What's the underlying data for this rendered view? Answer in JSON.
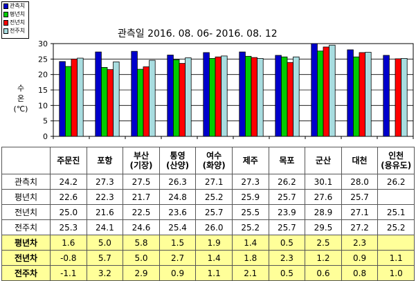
{
  "chart_data": {
    "type": "bar",
    "title": "관측일 2016. 08. 06- 2016. 08. 12",
    "ylabel": "수\n온\n(℃)",
    "ylim": [
      0,
      30
    ],
    "yticks": [
      0,
      5,
      10,
      15,
      20,
      25,
      30
    ],
    "legend_position": "top-left",
    "categories": [
      "주문진",
      "포항",
      "부산",
      "통영",
      "여수",
      "제주",
      "목포",
      "군산",
      "대천",
      "인천"
    ],
    "series": [
      {
        "name": "관측치",
        "color": "#0000cc",
        "values": [
          24.2,
          27.3,
          27.5,
          26.3,
          27.1,
          27.3,
          26.2,
          30.1,
          28.0,
          26.2
        ]
      },
      {
        "name": "평년치",
        "color": "#00cc00",
        "values": [
          22.6,
          22.3,
          21.7,
          24.8,
          25.2,
          25.9,
          25.7,
          27.6,
          25.7,
          null
        ]
      },
      {
        "name": "전년치",
        "color": "#ff0000",
        "values": [
          25.0,
          21.6,
          22.5,
          23.6,
          25.7,
          25.5,
          23.9,
          28.9,
          27.1,
          25.1
        ]
      },
      {
        "name": "전주치",
        "color": "#a8dde0",
        "values": [
          25.3,
          24.1,
          24.6,
          25.4,
          26.0,
          25.2,
          25.7,
          29.5,
          27.2,
          25.2
        ]
      }
    ]
  },
  "table": {
    "headers": [
      "주문진",
      "포항",
      "부산\n(기장)",
      "통영\n(산양)",
      "여수\n(화양)",
      "제주",
      "목포",
      "군산",
      "대천",
      "인천\n(용유도)"
    ],
    "rows": [
      {
        "label": "관측치",
        "values": [
          "24.2",
          "27.3",
          "27.5",
          "26.3",
          "27.1",
          "27.3",
          "26.2",
          "30.1",
          "28.0",
          "26.2"
        ]
      },
      {
        "label": "평년치",
        "values": [
          "22.6",
          "22.3",
          "21.7",
          "24.8",
          "25.2",
          "25.9",
          "25.7",
          "27.6",
          "25.7",
          ""
        ]
      },
      {
        "label": "전년치",
        "values": [
          "25.0",
          "21.6",
          "22.5",
          "23.6",
          "25.7",
          "25.5",
          "23.9",
          "28.9",
          "27.1",
          "25.1"
        ]
      },
      {
        "label": "전주치",
        "values": [
          "25.3",
          "24.1",
          "24.6",
          "25.4",
          "26.0",
          "25.2",
          "25.7",
          "29.5",
          "27.2",
          "25.2"
        ]
      }
    ],
    "diff_rows": [
      {
        "label": "평년차",
        "values": [
          "1.6",
          "5.0",
          "5.8",
          "1.5",
          "1.9",
          "1.4",
          "0.5",
          "2.5",
          "2.3",
          ""
        ]
      },
      {
        "label": "전년차",
        "values": [
          "-0.8",
          "5.7",
          "5.0",
          "2.7",
          "1.4",
          "1.8",
          "2.3",
          "1.2",
          "0.9",
          "1.1"
        ]
      },
      {
        "label": "전주차",
        "values": [
          "-1.1",
          "3.2",
          "2.9",
          "0.9",
          "1.1",
          "2.1",
          "0.5",
          "0.6",
          "0.8",
          "1.0"
        ]
      }
    ]
  }
}
